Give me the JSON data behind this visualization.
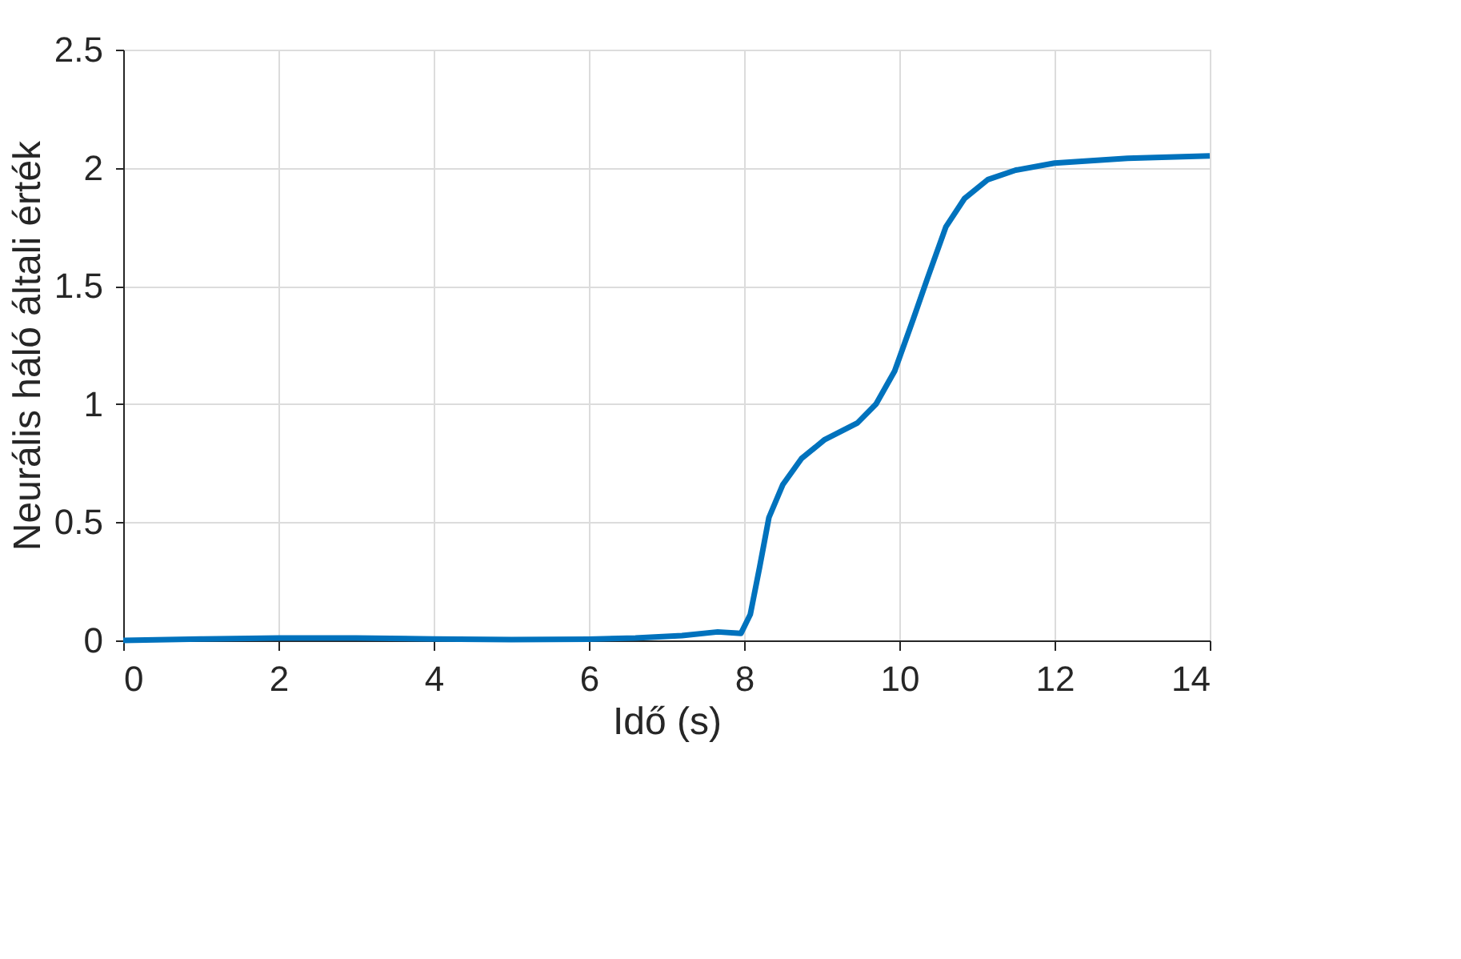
{
  "chart_data": {
    "type": "line",
    "xlabel": "Idő (s)",
    "ylabel": "Neurális háló általi érték",
    "x": [
      0,
      1,
      2,
      3,
      4,
      5,
      6,
      6.6,
      7.2,
      7.66,
      7.96,
      8.08,
      8.2,
      8.32,
      8.5,
      8.74,
      9.04,
      9.46,
      9.7,
      9.94,
      10.18,
      10.36,
      10.6,
      10.84,
      11.14,
      11.5,
      12,
      12.94,
      14
    ],
    "series": [
      {
        "color": "#0072bd",
        "values": [
          0,
          0.006,
          0.01,
          0.01,
          0.006,
          0.003,
          0.005,
          0.01,
          0.02,
          0.036,
          0.03,
          0.11,
          0.31,
          0.52,
          0.66,
          0.77,
          0.85,
          0.92,
          1.0,
          1.14,
          1.36,
          1.53,
          1.75,
          1.87,
          1.95,
          1.99,
          2.02,
          2.04,
          2.05
        ]
      }
    ],
    "xlim": [
      0,
      14
    ],
    "xticks": [
      0,
      2,
      4,
      6,
      8,
      10,
      12,
      14
    ],
    "ylim": [
      0,
      2.5
    ],
    "yticks": [
      0,
      0.5,
      1,
      1.5,
      2,
      2.5
    ],
    "grid": true,
    "marker": "none",
    "line_style": "solid"
  }
}
